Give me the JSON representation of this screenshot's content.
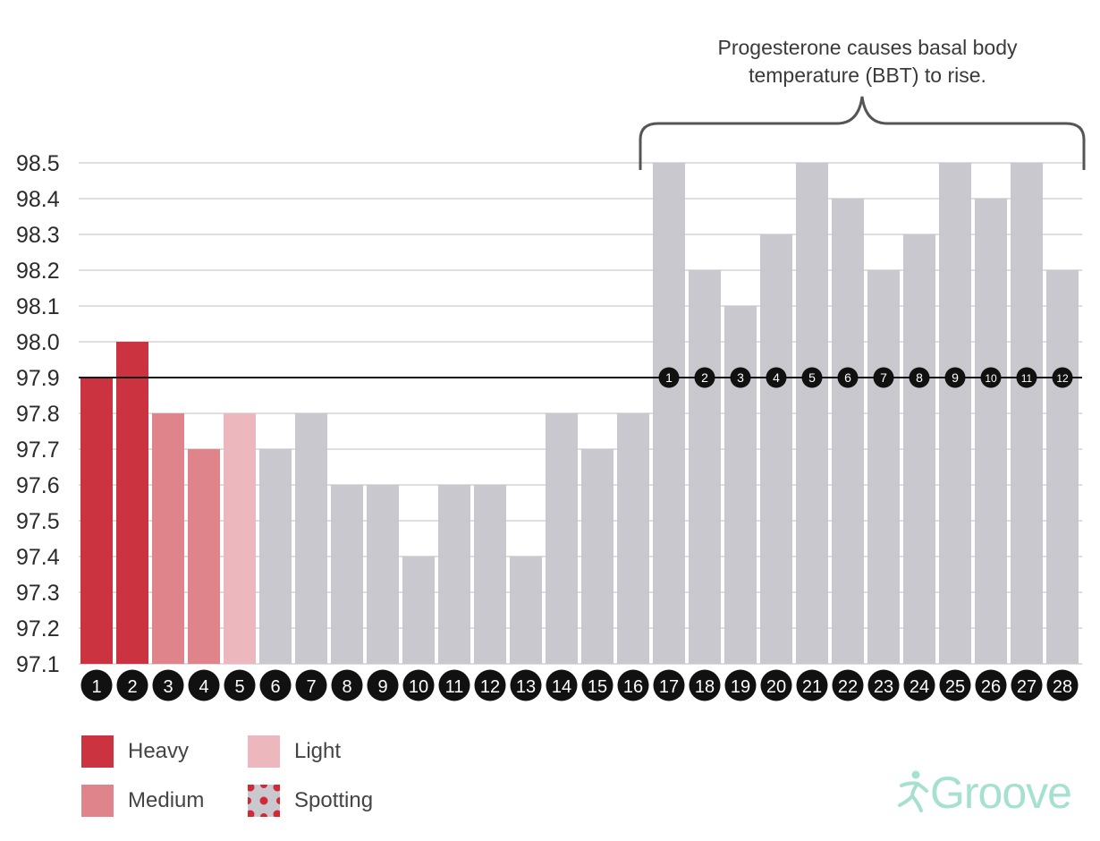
{
  "chart_data": {
    "type": "bar",
    "categories": [
      "1",
      "2",
      "3",
      "4",
      "5",
      "6",
      "7",
      "8",
      "9",
      "10",
      "11",
      "12",
      "13",
      "14",
      "15",
      "16",
      "17",
      "18",
      "19",
      "20",
      "21",
      "22",
      "23",
      "24",
      "25",
      "26",
      "27",
      "28"
    ],
    "values": [
      97.9,
      98.0,
      97.8,
      97.7,
      97.8,
      97.7,
      97.8,
      97.6,
      97.6,
      97.4,
      97.6,
      97.6,
      97.4,
      97.8,
      97.7,
      97.8,
      98.5,
      98.2,
      98.1,
      98.3,
      98.5,
      98.4,
      98.2,
      98.3,
      98.5,
      98.4,
      98.5,
      98.2
    ],
    "flow": [
      "Heavy",
      "Heavy",
      "Medium",
      "Medium",
      "Light",
      "",
      "",
      "",
      "",
      "",
      "",
      "",
      "",
      "",
      "",
      "",
      "",
      "",
      "",
      "",
      "",
      "",
      "",
      "",
      "",
      "",
      "",
      ""
    ],
    "ylim": [
      97.1,
      98.5
    ],
    "yticks": [
      "97.1",
      "97.2",
      "97.3",
      "97.4",
      "97.5",
      "97.6",
      "97.7",
      "97.8",
      "97.9",
      "98.0",
      "98.1",
      "98.2",
      "98.3",
      "98.4",
      "98.5"
    ],
    "reference_line": 97.9,
    "elevated_day_labels": [
      "1",
      "2",
      "3",
      "4",
      "5",
      "6",
      "7",
      "8",
      "9",
      "10",
      "11",
      "12"
    ],
    "elevated_start_day": 17,
    "grid": true,
    "annotation": [
      "Progesterone causes basal body",
      "temperature (BBT) to rise."
    ],
    "legend": [
      {
        "label": "Heavy",
        "color": "#cc3340"
      },
      {
        "label": "Light",
        "color": "#ecb8bd"
      },
      {
        "label": "Medium",
        "color": "#e0848b"
      },
      {
        "label": "Spotting",
        "color": "#c9c8ce",
        "dot_color": "#d12a36"
      }
    ],
    "colors": {
      "heavy": "#cc3340",
      "medium": "#e0848b",
      "light": "#ecb8bd",
      "none": "#c9c8ce",
      "grid": "#dedede",
      "badge": "#111111"
    }
  },
  "brand": {
    "name": "Groove",
    "color": "#a5e0d0"
  }
}
